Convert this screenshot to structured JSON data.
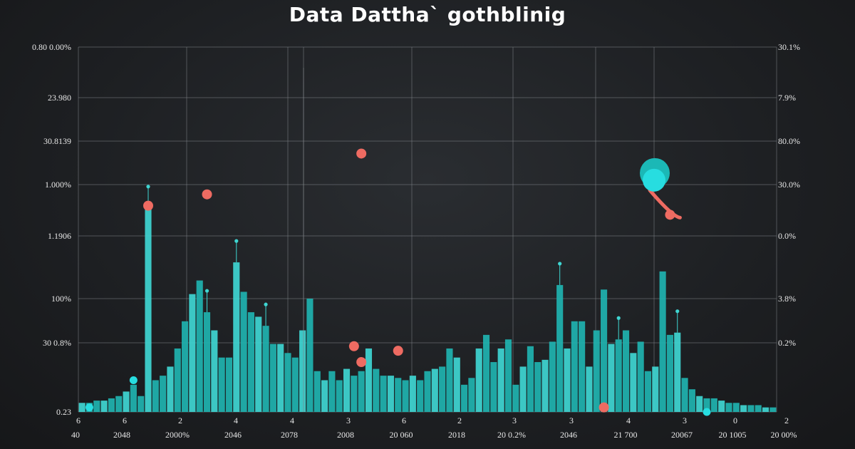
{
  "title": "Data Dattha` gothblinig",
  "colors": {
    "background": "#1f2124",
    "bar": "#1fb3b0",
    "bar_light": "#3fd6d2",
    "accent_red": "#ee6b62",
    "accent_cyan": "#27dde0",
    "grid": "#7d8186",
    "text": "#e8e8e8"
  },
  "chart_data": {
    "type": "bar",
    "title": "Data Dattha` gothblinig",
    "xlabel": "",
    "ylabel": "",
    "grid": true,
    "ylim": [
      0,
      100
    ],
    "y_ticks_left": [
      "0.23",
      "30 0.8%",
      "100%",
      "1.1906",
      "1.000%",
      "30.8139",
      "23.980",
      "0.80 0.00%"
    ],
    "y_ticks_right": [
      "",
      "0.2%",
      "3.8%",
      "0.0%",
      "30.0%",
      "80.0%",
      "7.9%",
      "30.1%"
    ],
    "x_ticks_top": [
      "6",
      "6",
      "2",
      "4",
      "4",
      "3",
      "6",
      "2",
      "3",
      "3",
      "4",
      "3",
      "0",
      "2"
    ],
    "x_ticks_bottom": [
      "40",
      "2048",
      "2000%",
      "2046",
      "2078",
      "2008",
      "20 060",
      "2018",
      "20 0.2%",
      "2046",
      "21 700",
      "20067",
      "20 1005",
      "20 00%"
    ],
    "series": [
      {
        "values": [
          4,
          4,
          5,
          5,
          6,
          7,
          9,
          12,
          7,
          90,
          14,
          16,
          20,
          28,
          40,
          52,
          58,
          44,
          36,
          24,
          24,
          66,
          53,
          44,
          42,
          38,
          30,
          30,
          26,
          24,
          36,
          50,
          18,
          14,
          18,
          14,
          19,
          16,
          18,
          28,
          19,
          16,
          16,
          15,
          14,
          16,
          14,
          18,
          19,
          20,
          28,
          24,
          12,
          15,
          28,
          34,
          22,
          28,
          32,
          12,
          20,
          29,
          22,
          23,
          31,
          56,
          28,
          40,
          40,
          20,
          36,
          54,
          30,
          32,
          36,
          26,
          31,
          18,
          20,
          62,
          34,
          35,
          15,
          10,
          7,
          6,
          6,
          5,
          4,
          4,
          3,
          3,
          3,
          2,
          2
        ]
      }
    ],
    "markers_red": [
      {
        "bar": 9,
        "value": 91
      },
      {
        "bar": 17,
        "value": 96
      },
      {
        "bar": 38,
        "value": 114
      },
      {
        "bar": 37,
        "value": 29
      },
      {
        "bar": 38,
        "value": 22
      },
      {
        "bar": 43,
        "value": 27
      },
      {
        "bar": 80,
        "value": 87
      },
      {
        "bar": 71,
        "value": 2
      }
    ],
    "markers_cyan": [
      {
        "bar": 1,
        "value": 2
      },
      {
        "bar": 7,
        "value": 14
      },
      {
        "bar": 85,
        "value": 0
      }
    ],
    "callout": {
      "bar": 80,
      "start_value": 87,
      "end_value": 101
    }
  }
}
